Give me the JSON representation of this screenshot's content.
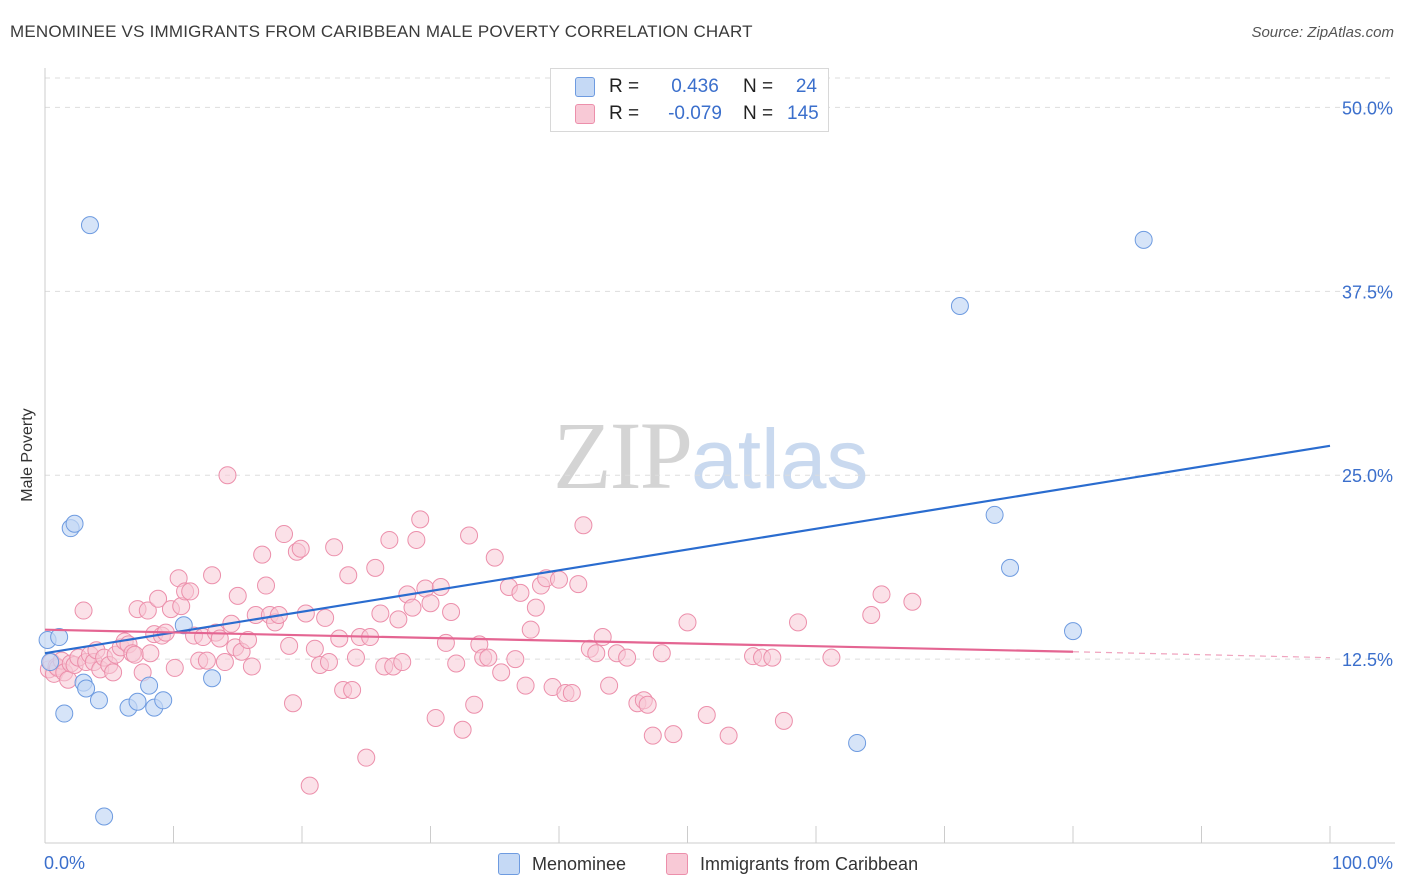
{
  "header": {
    "title": "MENOMINEE VS IMMIGRANTS FROM CARIBBEAN MALE POVERTY CORRELATION CHART",
    "source": "Source: ZipAtlas.com"
  },
  "watermark": {
    "zip": "ZIP",
    "atlas": "atlas"
  },
  "legend": {
    "rows": [
      {
        "r_label": "R =",
        "r_value": "0.436",
        "n_label": "N =",
        "n_value": "24"
      },
      {
        "r_label": "R =",
        "r_value": "-0.079",
        "n_label": "N =",
        "n_value": "145"
      }
    ],
    "bottom": [
      "Menominee",
      "Immigrants from Caribbean"
    ]
  },
  "colors": {
    "blue_fill": "#c5d9f5",
    "blue_stroke": "#6e9be0",
    "blue_line": "#2a6ccf",
    "pink_fill": "#f8c9d6",
    "pink_stroke": "#ec8fab",
    "pink_line": "#e46592",
    "axis_label": "#3b6fcc",
    "grid": "#dddddd"
  },
  "chart_data": {
    "type": "scatter",
    "title": "MENOMINEE VS IMMIGRANTS FROM CARIBBEAN MALE POVERTY CORRELATION CHART",
    "xlabel": "",
    "ylabel": "Male Poverty",
    "xlim": [
      0,
      100
    ],
    "ylim": [
      0,
      52
    ],
    "x_tick_labels": [
      "0.0%",
      "100.0%"
    ],
    "y_ticks": [
      12.5,
      25.0,
      37.5,
      50.0
    ],
    "y_tick_labels": [
      "12.5%",
      "25.0%",
      "37.5%",
      "50.0%"
    ],
    "grid": true,
    "series": [
      {
        "name": "Menominee",
        "r": 0.436,
        "n": 24,
        "trend": {
          "x": [
            0,
            100
          ],
          "y": [
            12.9,
            27.0
          ]
        },
        "points": [
          [
            0.2,
            13.8
          ],
          [
            1.1,
            14.0
          ],
          [
            1.5,
            8.8
          ],
          [
            2.0,
            21.4
          ],
          [
            2.3,
            21.7
          ],
          [
            3.0,
            10.9
          ],
          [
            3.2,
            10.5
          ],
          [
            3.5,
            42.0
          ],
          [
            4.2,
            9.7
          ],
          [
            4.6,
            1.8
          ],
          [
            6.5,
            9.2
          ],
          [
            7.2,
            9.6
          ],
          [
            8.1,
            10.7
          ],
          [
            8.5,
            9.2
          ],
          [
            9.2,
            9.7
          ],
          [
            10.8,
            14.8
          ],
          [
            13.0,
            11.2
          ],
          [
            63.2,
            6.8
          ],
          [
            71.2,
            36.5
          ],
          [
            73.9,
            22.3
          ],
          [
            75.1,
            18.7
          ],
          [
            80.0,
            14.4
          ],
          [
            85.5,
            41.0
          ],
          [
            0.4,
            12.3
          ]
        ]
      },
      {
        "name": "Immigrants from Caribbean",
        "r": -0.079,
        "n": 145,
        "trend": {
          "x": [
            0,
            80
          ],
          "y": [
            14.5,
            13.0
          ]
        },
        "trend_dashed": {
          "x": [
            80,
            100
          ],
          "y": [
            13.0,
            12.6
          ]
        },
        "points": [
          [
            0.3,
            11.8
          ],
          [
            0.5,
            12.3
          ],
          [
            0.7,
            11.5
          ],
          [
            0.9,
            12.0
          ],
          [
            1.0,
            11.9
          ],
          [
            1.3,
            12.4
          ],
          [
            1.5,
            11.6
          ],
          [
            1.8,
            11.1
          ],
          [
            2.0,
            12.2
          ],
          [
            2.3,
            12.1
          ],
          [
            2.6,
            12.6
          ],
          [
            3.0,
            15.8
          ],
          [
            3.2,
            12.3
          ],
          [
            3.5,
            12.8
          ],
          [
            3.8,
            12.3
          ],
          [
            4.0,
            13.1
          ],
          [
            4.3,
            11.8
          ],
          [
            4.6,
            12.6
          ],
          [
            5.0,
            12.1
          ],
          [
            5.3,
            11.6
          ],
          [
            5.5,
            12.8
          ],
          [
            5.9,
            13.3
          ],
          [
            6.2,
            13.7
          ],
          [
            6.5,
            13.5
          ],
          [
            6.8,
            12.9
          ],
          [
            7.0,
            12.8
          ],
          [
            7.2,
            15.9
          ],
          [
            7.6,
            11.6
          ],
          [
            8.0,
            15.8
          ],
          [
            8.2,
            12.9
          ],
          [
            8.5,
            14.2
          ],
          [
            8.8,
            16.6
          ],
          [
            9.1,
            14.1
          ],
          [
            9.4,
            14.3
          ],
          [
            9.8,
            15.9
          ],
          [
            10.1,
            11.9
          ],
          [
            10.4,
            18.0
          ],
          [
            10.6,
            16.1
          ],
          [
            10.9,
            17.1
          ],
          [
            11.3,
            17.1
          ],
          [
            11.6,
            14.1
          ],
          [
            12.0,
            12.4
          ],
          [
            12.3,
            14.0
          ],
          [
            12.6,
            12.4
          ],
          [
            13.0,
            18.2
          ],
          [
            13.3,
            14.3
          ],
          [
            13.6,
            13.9
          ],
          [
            14.0,
            12.3
          ],
          [
            14.2,
            25.0
          ],
          [
            14.5,
            14.9
          ],
          [
            14.8,
            13.3
          ],
          [
            15.0,
            16.8
          ],
          [
            15.3,
            13.0
          ],
          [
            15.8,
            13.8
          ],
          [
            16.1,
            12.0
          ],
          [
            16.4,
            15.5
          ],
          [
            16.9,
            19.6
          ],
          [
            17.2,
            17.5
          ],
          [
            17.5,
            15.5
          ],
          [
            17.9,
            15.0
          ],
          [
            18.2,
            15.5
          ],
          [
            18.6,
            21.0
          ],
          [
            19.0,
            13.4
          ],
          [
            19.3,
            9.5
          ],
          [
            19.6,
            19.8
          ],
          [
            19.9,
            20.0
          ],
          [
            20.3,
            15.6
          ],
          [
            20.6,
            3.9
          ],
          [
            21.0,
            13.2
          ],
          [
            21.4,
            12.1
          ],
          [
            21.8,
            15.3
          ],
          [
            22.1,
            12.3
          ],
          [
            22.5,
            20.1
          ],
          [
            22.9,
            13.9
          ],
          [
            23.2,
            10.4
          ],
          [
            23.6,
            18.2
          ],
          [
            23.9,
            10.4
          ],
          [
            24.2,
            12.6
          ],
          [
            24.5,
            14.0
          ],
          [
            25.0,
            5.8
          ],
          [
            25.3,
            14.0
          ],
          [
            25.7,
            18.7
          ],
          [
            26.1,
            15.6
          ],
          [
            26.4,
            12.0
          ],
          [
            26.8,
            20.6
          ],
          [
            27.1,
            12.0
          ],
          [
            27.5,
            15.2
          ],
          [
            27.8,
            12.3
          ],
          [
            28.2,
            16.9
          ],
          [
            28.6,
            16.0
          ],
          [
            28.9,
            20.6
          ],
          [
            29.2,
            22.0
          ],
          [
            29.6,
            17.3
          ],
          [
            30.0,
            16.3
          ],
          [
            30.4,
            8.5
          ],
          [
            30.8,
            17.4
          ],
          [
            31.2,
            13.6
          ],
          [
            31.6,
            15.7
          ],
          [
            32.0,
            12.2
          ],
          [
            32.5,
            7.7
          ],
          [
            33.0,
            20.9
          ],
          [
            33.4,
            9.4
          ],
          [
            33.8,
            13.5
          ],
          [
            34.1,
            12.6
          ],
          [
            34.5,
            12.6
          ],
          [
            35.0,
            19.4
          ],
          [
            35.5,
            11.6
          ],
          [
            36.1,
            17.4
          ],
          [
            36.6,
            12.5
          ],
          [
            37.0,
            17.0
          ],
          [
            37.4,
            10.7
          ],
          [
            37.8,
            14.5
          ],
          [
            38.2,
            16.0
          ],
          [
            38.6,
            17.5
          ],
          [
            39.0,
            18.0
          ],
          [
            39.5,
            10.6
          ],
          [
            40.0,
            17.9
          ],
          [
            40.5,
            10.2
          ],
          [
            41.0,
            10.2
          ],
          [
            41.5,
            17.6
          ],
          [
            41.9,
            21.6
          ],
          [
            42.4,
            13.2
          ],
          [
            42.9,
            12.9
          ],
          [
            43.4,
            14.0
          ],
          [
            43.9,
            10.7
          ],
          [
            44.5,
            12.9
          ],
          [
            45.3,
            12.6
          ],
          [
            46.1,
            9.5
          ],
          [
            46.6,
            9.7
          ],
          [
            46.9,
            9.4
          ],
          [
            47.3,
            7.3
          ],
          [
            48.0,
            12.9
          ],
          [
            48.9,
            7.4
          ],
          [
            50.0,
            15.0
          ],
          [
            51.5,
            8.7
          ],
          [
            53.2,
            7.3
          ],
          [
            55.1,
            12.7
          ],
          [
            55.8,
            12.6
          ],
          [
            56.6,
            12.6
          ],
          [
            57.5,
            8.3
          ],
          [
            58.6,
            15.0
          ],
          [
            61.2,
            12.6
          ],
          [
            64.3,
            15.5
          ],
          [
            65.1,
            16.9
          ],
          [
            67.5,
            16.4
          ]
        ]
      }
    ]
  }
}
